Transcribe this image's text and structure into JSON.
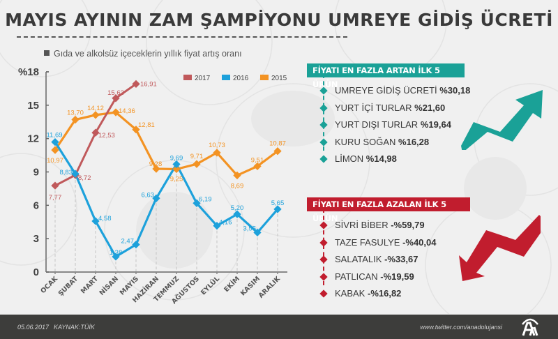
{
  "header": {
    "title": "MAYIS AYININ ZAM ŞAMPİYONU UMREYE GİDİŞ ÜCRETİ",
    "subtitle": "Gıda ve alkolsüz içeceklerin yıllık fiyat artış oranı"
  },
  "colors": {
    "y2017": "#c0595b",
    "y2016": "#1da1db",
    "y2015": "#f39323",
    "up_accent": "#1aa197",
    "down_accent": "#c11d2e",
    "footer_bg": "#3d3d3b"
  },
  "chart_data": {
    "type": "line",
    "title": "Gıda ve alkolsüz içeceklerin yıllık fiyat artış oranı",
    "xlabel": "",
    "ylabel": "%",
    "ylim": [
      0,
      18
    ],
    "yticks": [
      "0",
      "3",
      "6",
      "9",
      "12",
      "15",
      "%18"
    ],
    "grid": "vertical dashed",
    "legend_position": "top-right",
    "categories": [
      "OCAK",
      "ŞUBAT",
      "MART",
      "NİSAN",
      "MAYIS",
      "HAZİRAN",
      "TEMMUZ",
      "AĞUSTOS",
      "EYLÜL",
      "EKİM",
      "KASIM",
      "ARALIK"
    ],
    "series": [
      {
        "name": "2017",
        "color": "#c0595b",
        "values": [
          7.77,
          8.72,
          12.53,
          15.63,
          16.91,
          null,
          null,
          null,
          null,
          null,
          null,
          null
        ],
        "labels": [
          "7,77",
          "8,72",
          "12,53",
          "15,63",
          "16,91"
        ]
      },
      {
        "name": "2016",
        "color": "#1da1db",
        "values": [
          11.69,
          8.83,
          4.58,
          1.38,
          2.47,
          6.63,
          9.69,
          6.19,
          4.16,
          5.2,
          3.55,
          5.65
        ],
        "labels": [
          "11,69",
          "8,83",
          "4,58",
          "1,38",
          "2,47",
          "6,63",
          "9,69",
          "6,19",
          "4,16",
          "5,20",
          "3,55",
          "5,65"
        ]
      },
      {
        "name": "2015",
        "color": "#f39323",
        "values": [
          10.97,
          13.7,
          14.12,
          14.36,
          12.81,
          9.28,
          9.25,
          9.71,
          10.73,
          8.69,
          9.51,
          10.87
        ],
        "labels": [
          "10,97",
          "13,70",
          "14,12",
          "14,36",
          "12,81",
          "9,28",
          "9,25",
          "9,71",
          "10,73",
          "8,69",
          "9,51",
          "10,87"
        ]
      }
    ]
  },
  "legend": [
    {
      "label": "2017",
      "color": "#c0595b"
    },
    {
      "label": "2016",
      "color": "#1da1db"
    },
    {
      "label": "2015",
      "color": "#f39323"
    }
  ],
  "increase_panel": {
    "title": "FİYATI EN FAZLA ARTAN İLK 5 ÜRÜN",
    "items": [
      {
        "name": "UMREYE GİDİŞ ÜCRETİ",
        "value": "%30,18"
      },
      {
        "name": "YURT İÇİ TURLAR",
        "value": "%21,60"
      },
      {
        "name": "YURT DIŞI TURLAR",
        "value": "%19,64"
      },
      {
        "name": "KURU SOĞAN",
        "value": "%16,28"
      },
      {
        "name": "LİMON",
        "value": "%14,98"
      }
    ]
  },
  "decrease_panel": {
    "title": "FİYATI EN FAZLA AZALAN İLK 5 ÜRÜN",
    "items": [
      {
        "name": "SİVRİ BİBER",
        "value": "-%59,79"
      },
      {
        "name": "TAZE FASULYE",
        "value": "-%40,04"
      },
      {
        "name": "SALATALIK",
        "value": "-%33,67"
      },
      {
        "name": "PATLICAN",
        "value": "-%19,59"
      },
      {
        "name": "KABAK",
        "value": "-%16,82"
      }
    ]
  },
  "footer": {
    "date": "05.06.2017",
    "source": "KAYNAK:TÜİK",
    "twitter": "www.twitter.com/anadolujansi",
    "logo": "AA"
  }
}
